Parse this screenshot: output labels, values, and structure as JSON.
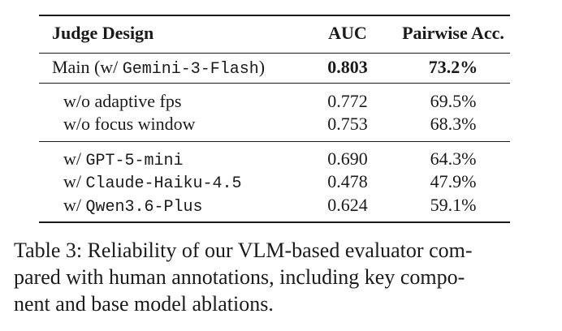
{
  "table": {
    "headers": {
      "design": "Judge Design",
      "auc": "AUC",
      "acc": "Pairwise Acc."
    },
    "main_row": {
      "prefix": "Main (w/ ",
      "model": "Gemini-3-Flash",
      "suffix": ")",
      "auc": "0.803",
      "acc": "73.2%"
    },
    "component_ablations": [
      {
        "label": "w/o adaptive fps",
        "auc": "0.772",
        "acc": "69.5%"
      },
      {
        "label": "w/o focus window",
        "auc": "0.753",
        "acc": "68.3%"
      }
    ],
    "model_ablations": [
      {
        "prefix": "w/ ",
        "model": "GPT-5-mini",
        "auc": "0.690",
        "acc": "64.3%"
      },
      {
        "prefix": "w/ ",
        "model": "Claude-Haiku-4.5",
        "auc": "0.478",
        "acc": "47.9%"
      },
      {
        "prefix": "w/ ",
        "model": "Qwen3.6-Plus",
        "auc": "0.624",
        "acc": "59.1%"
      }
    ]
  },
  "caption": {
    "line1": "Table 3: Reliability of our VLM-based evaluator com-",
    "line2": "pared with human annotations, including key compo-",
    "line3": "nent and base model ablations."
  }
}
